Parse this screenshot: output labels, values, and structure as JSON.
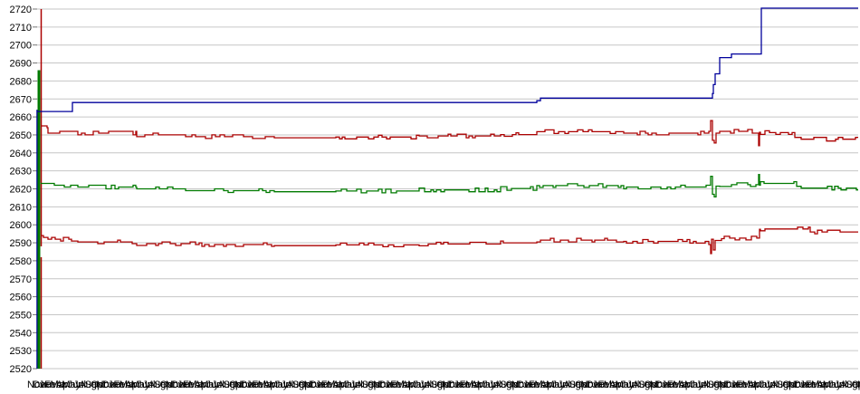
{
  "chart": {
    "background": "#ffffff",
    "grid_color": "#c6c6c6",
    "tick_color": "#767676",
    "label_color": "#000000",
    "colors": {
      "blue": "#00009c",
      "red": "#ab0000",
      "green": "#007a00"
    }
  },
  "chart_data": {
    "type": "line",
    "title": "",
    "xlabel": "",
    "ylabel": "",
    "ylim": [
      2520,
      2720
    ],
    "y_tick_step": 10,
    "grid": true,
    "legend": "none",
    "y_tick_labels": [
      "2720",
      "2710",
      "2700",
      "2690",
      "2680",
      "2670",
      "2660",
      "2650",
      "2640",
      "2630",
      "2620",
      "2610",
      "2600",
      "2590",
      "2580",
      "2570",
      "2560",
      "2550",
      "2540",
      "2530",
      "2520"
    ],
    "x_axis": {
      "months": [
        "Jan",
        "Feb",
        "Mar",
        "Apr",
        "May",
        "Jun",
        "Jul",
        "Aug",
        "Sep",
        "Oct",
        "Nov",
        "Dec"
      ],
      "start_index": 10,
      "label_count": 145,
      "overlapping": true
    },
    "series": [
      {
        "name": "blue-step-line",
        "color_key": "blue",
        "segments": [
          [
            0,
            39,
            2663,
            0
          ],
          [
            39,
            552,
            2668,
            0
          ],
          [
            552,
            556,
            2669,
            0
          ],
          [
            556,
            746,
            2670.5,
            0
          ],
          [
            746,
            747,
            2673,
            0
          ],
          [
            747,
            749,
            2678,
            0
          ],
          [
            749,
            754,
            2684,
            0
          ],
          [
            754,
            767,
            2693,
            0
          ],
          [
            767,
            800,
            2695,
            0
          ],
          [
            800,
            907,
            2720.5,
            0
          ]
        ]
      },
      {
        "name": "red-upper-line",
        "color_key": "red",
        "segments": [
          [
            4,
            12,
            2654,
            1
          ],
          [
            12,
            45,
            2652,
            1
          ],
          [
            45,
            110,
            2651,
            1
          ],
          [
            110,
            175,
            2650,
            1
          ],
          [
            175,
            262,
            2649,
            1
          ],
          [
            262,
            330,
            2648.4,
            0.4
          ],
          [
            330,
            422,
            2648.8,
            0.8
          ],
          [
            422,
            512,
            2649.4,
            0.9
          ],
          [
            512,
            552,
            2650.2,
            0.7
          ],
          [
            552,
            648,
            2651.8,
            0.9
          ],
          [
            648,
            742,
            2651,
            0.9
          ],
          [
            742,
            744,
            2652,
            0
          ],
          [
            744,
            746,
            2658,
            0
          ],
          [
            746,
            748,
            2647,
            0
          ],
          [
            748,
            750,
            2645.5,
            0
          ],
          [
            750,
            754,
            2651,
            0
          ],
          [
            754,
            797,
            2652,
            0.9
          ],
          [
            797,
            798,
            2644,
            0
          ],
          [
            798,
            799,
            2651.5,
            0
          ],
          [
            799,
            837,
            2651.3,
            0.9
          ],
          [
            837,
            907,
            2647.6,
            1
          ]
        ]
      },
      {
        "name": "green-middle-line",
        "color_key": "green",
        "segments": [
          [
            4,
            12,
            2624,
            1
          ],
          [
            12,
            45,
            2622,
            1
          ],
          [
            45,
            110,
            2621,
            1
          ],
          [
            110,
            175,
            2620,
            1
          ],
          [
            175,
            262,
            2619,
            1
          ],
          [
            262,
            330,
            2618.4,
            0.4
          ],
          [
            330,
            422,
            2618.8,
            0.8
          ],
          [
            422,
            512,
            2619.4,
            0.9
          ],
          [
            512,
            552,
            2620.2,
            0.7
          ],
          [
            552,
            648,
            2621.8,
            0.9
          ],
          [
            648,
            742,
            2621,
            0.9
          ],
          [
            742,
            744,
            2622,
            0
          ],
          [
            744,
            746,
            2627,
            0
          ],
          [
            746,
            748,
            2617,
            0
          ],
          [
            748,
            750,
            2615.5,
            0
          ],
          [
            750,
            754,
            2621.5,
            0
          ],
          [
            754,
            797,
            2622.3,
            0.9
          ],
          [
            797,
            798,
            2628,
            0
          ],
          [
            798,
            799,
            2622,
            0
          ],
          [
            799,
            839,
            2623,
            0.7
          ],
          [
            839,
            907,
            2620.4,
            1
          ]
        ]
      },
      {
        "name": "red-lower-line",
        "color_key": "red",
        "segments": [
          [
            4,
            12,
            2594,
            1
          ],
          [
            12,
            45,
            2592,
            1
          ],
          [
            45,
            110,
            2590.5,
            1
          ],
          [
            110,
            175,
            2589.5,
            1
          ],
          [
            175,
            262,
            2589,
            1
          ],
          [
            262,
            330,
            2588.4,
            0.4
          ],
          [
            330,
            422,
            2588.8,
            0.8
          ],
          [
            422,
            512,
            2589.3,
            0.9
          ],
          [
            512,
            552,
            2590,
            0.7
          ],
          [
            552,
            648,
            2591.5,
            0.9
          ],
          [
            648,
            742,
            2590.8,
            0.9
          ],
          [
            742,
            744,
            2589,
            0
          ],
          [
            744,
            745,
            2584,
            0
          ],
          [
            745,
            747,
            2592,
            0
          ],
          [
            747,
            749,
            2586,
            0
          ],
          [
            749,
            759,
            2592.3,
            0.9
          ],
          [
            759,
            798,
            2592.6,
            0.9
          ],
          [
            798,
            799,
            2597.5,
            0
          ],
          [
            799,
            854,
            2597.7,
            0.6
          ],
          [
            854,
            907,
            2596,
            1
          ]
        ]
      }
    ],
    "startup_spikes": [
      {
        "x": 0,
        "y1": 2520,
        "y2": 2664,
        "color_key": "blue",
        "w": 1.5
      },
      {
        "x": 2,
        "y1": 2520,
        "y2": 2686,
        "color_key": "green",
        "w": 3
      },
      {
        "x": 4.5,
        "y1": 2588,
        "y2": 2720,
        "color_key": "red",
        "w": 1.5
      },
      {
        "x": 4.5,
        "y1": 2520,
        "y2": 2582,
        "color_key": "red",
        "w": 1.5
      }
    ]
  }
}
